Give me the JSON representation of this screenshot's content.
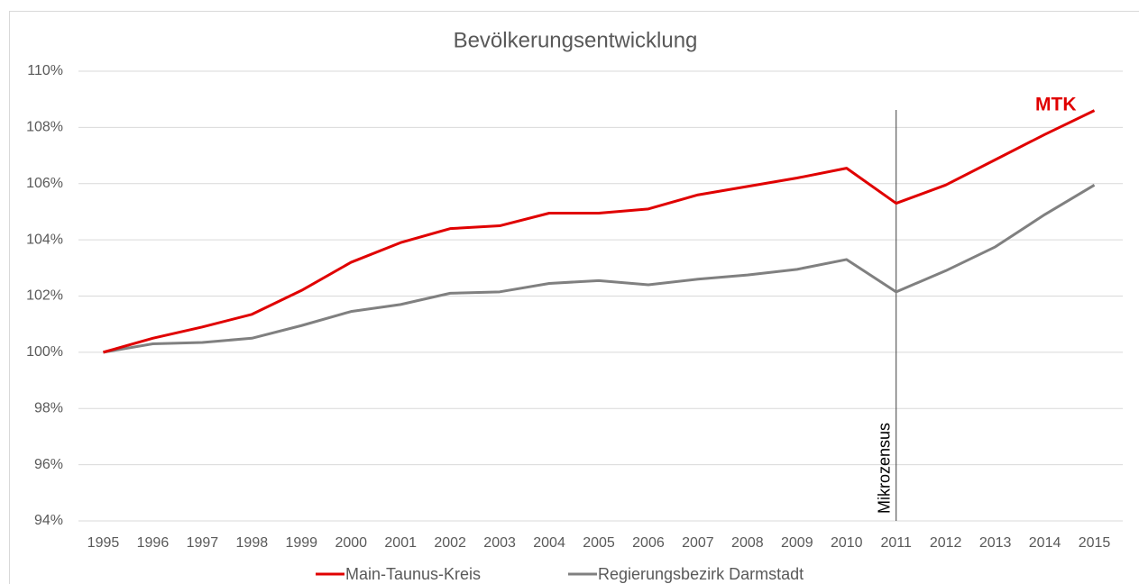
{
  "chart_data": {
    "type": "line",
    "title": "Bevölkerungsentwicklung",
    "categories": [
      "1995",
      "1996",
      "1997",
      "1998",
      "1999",
      "2000",
      "2001",
      "2002",
      "2003",
      "2004",
      "2005",
      "2006",
      "2007",
      "2008",
      "2009",
      "2010",
      "2011",
      "2012",
      "2013",
      "2014",
      "2015"
    ],
    "series": [
      {
        "name": "Main-Taunus-Kreis",
        "color": "#e00000",
        "values": [
          100,
          100.5,
          100.9,
          101.35,
          102.2,
          103.2,
          103.9,
          104.4,
          104.5,
          104.95,
          104.95,
          105.1,
          105.6,
          105.9,
          106.2,
          106.55,
          105.3,
          105.95,
          106.85,
          107.75,
          108.6
        ]
      },
      {
        "name": "Regierungsbezirk Darmstadt",
        "color": "#808080",
        "values": [
          100,
          100.3,
          100.35,
          100.5,
          100.95,
          101.45,
          101.7,
          102.1,
          102.15,
          102.45,
          102.55,
          102.4,
          102.6,
          102.75,
          102.95,
          103.3,
          102.15,
          102.9,
          103.75,
          104.9,
          105.95
        ]
      }
    ],
    "ylim": [
      94,
      110
    ],
    "yticks": [
      {
        "value": 94,
        "label": "94%"
      },
      {
        "value": 96,
        "label": "96%"
      },
      {
        "value": 98,
        "label": "98%"
      },
      {
        "value": 100,
        "label": "100%"
      },
      {
        "value": 102,
        "label": "102%"
      },
      {
        "value": 104,
        "label": "104%"
      },
      {
        "value": 106,
        "label": "106%"
      },
      {
        "value": 108,
        "label": "108%"
      },
      {
        "value": 110,
        "label": "110%"
      }
    ],
    "grid": true,
    "legend": "bottom",
    "annotations": [
      {
        "text": "MTK",
        "series": 0
      },
      {
        "text": "Mikrozensus",
        "x": "2011"
      }
    ]
  }
}
